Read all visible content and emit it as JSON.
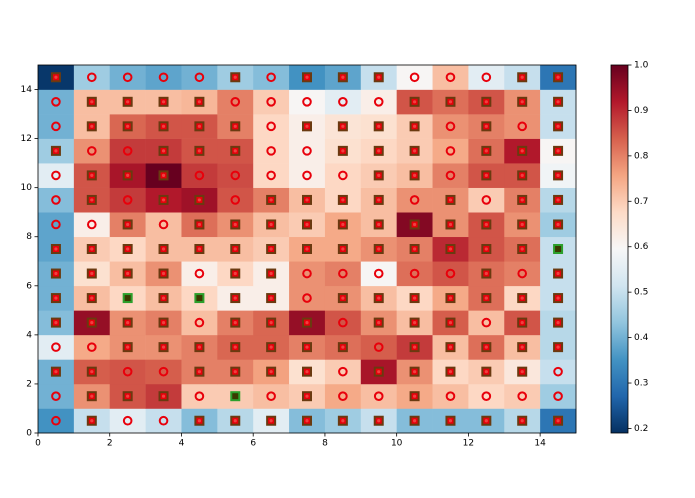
{
  "chart_data": {
    "type": "heatmap",
    "colormap": "RdBu_r",
    "xlim": [
      0,
      15
    ],
    "ylim": [
      0,
      15
    ],
    "xticks": [
      0,
      2,
      4,
      6,
      8,
      10,
      12,
      14
    ],
    "yticks": [
      0,
      2,
      4,
      6,
      8,
      10,
      12,
      14
    ],
    "clim": [
      0.19,
      1.0
    ],
    "cticks": [
      0.2,
      0.3,
      0.4,
      0.5,
      0.6,
      0.7,
      0.8,
      0.9,
      {
        "value": 1,
        "label": "1.0"
      }
    ],
    "values": [
      [
        0.35,
        0.5,
        0.55,
        0.5,
        0.42,
        0.48,
        0.55,
        0.42,
        0.45,
        0.5,
        0.42,
        0.42,
        0.42,
        0.48,
        0.3
      ],
      [
        0.4,
        0.78,
        0.85,
        0.88,
        0.7,
        0.7,
        0.72,
        0.7,
        0.75,
        0.72,
        0.75,
        0.72,
        0.68,
        0.7,
        0.45
      ],
      [
        0.4,
        0.84,
        0.85,
        0.84,
        0.8,
        0.8,
        0.76,
        0.66,
        0.7,
        0.93,
        0.78,
        0.68,
        0.7,
        0.64,
        0.5
      ],
      [
        0.55,
        0.75,
        0.78,
        0.78,
        0.8,
        0.83,
        0.83,
        0.8,
        0.82,
        0.84,
        0.88,
        0.72,
        0.82,
        0.72,
        0.48
      ],
      [
        0.42,
        0.95,
        0.78,
        0.8,
        0.72,
        0.8,
        0.83,
        0.95,
        0.85,
        0.78,
        0.72,
        0.84,
        0.72,
        0.85,
        0.48
      ],
      [
        0.4,
        0.72,
        0.68,
        0.72,
        0.68,
        0.62,
        0.62,
        0.78,
        0.78,
        0.72,
        0.68,
        0.75,
        0.82,
        0.68,
        0.5
      ],
      [
        0.4,
        0.66,
        0.72,
        0.78,
        0.62,
        0.68,
        0.62,
        0.78,
        0.8,
        0.6,
        0.82,
        0.85,
        0.82,
        0.8,
        0.5
      ],
      [
        0.38,
        0.7,
        0.68,
        0.72,
        0.72,
        0.72,
        0.7,
        0.75,
        0.75,
        0.78,
        0.8,
        0.9,
        0.85,
        0.82,
        0.5
      ],
      [
        0.38,
        0.62,
        0.8,
        0.72,
        0.82,
        0.78,
        0.72,
        0.7,
        0.75,
        0.72,
        0.97,
        0.78,
        0.85,
        0.78,
        0.45
      ],
      [
        0.42,
        0.85,
        0.88,
        0.92,
        0.94,
        0.85,
        0.8,
        0.72,
        0.68,
        0.72,
        0.78,
        0.78,
        0.7,
        0.8,
        0.48
      ],
      [
        0.55,
        0.85,
        0.93,
        1.0,
        0.88,
        0.86,
        0.68,
        0.62,
        0.68,
        0.7,
        0.72,
        0.8,
        0.85,
        0.85,
        0.58
      ],
      [
        0.45,
        0.78,
        0.88,
        0.88,
        0.85,
        0.85,
        0.68,
        0.62,
        0.66,
        0.68,
        0.7,
        0.75,
        0.82,
        0.92,
        0.6
      ],
      [
        0.4,
        0.72,
        0.83,
        0.85,
        0.85,
        0.8,
        0.68,
        0.62,
        0.65,
        0.66,
        0.7,
        0.78,
        0.8,
        0.78,
        0.5
      ],
      [
        0.4,
        0.72,
        0.72,
        0.72,
        0.73,
        0.8,
        0.7,
        0.6,
        0.55,
        0.62,
        0.85,
        0.82,
        0.85,
        0.78,
        0.5
      ],
      [
        0.2,
        0.45,
        0.4,
        0.38,
        0.4,
        0.45,
        0.42,
        0.35,
        0.38,
        0.5,
        0.6,
        0.72,
        0.55,
        0.5,
        0.3
      ]
    ],
    "markers": [
      "osoosssssssssss",
      "osssogosoosoooo",
      "ssoossssossssso",
      "oosssssssosssss",
      "ssssosssosssoss",
      "ssgsgssosssssss",
      "ssssossooooosos",
      "ssssssssssssssg",
      "oososssssssssss",
      "osossossssososs",
      "osssooooossosss",
      "soosssoosssosss",
      "osssssossssosos",
      "ossssooooosssss",
      "soooososssoooss"
    ]
  }
}
